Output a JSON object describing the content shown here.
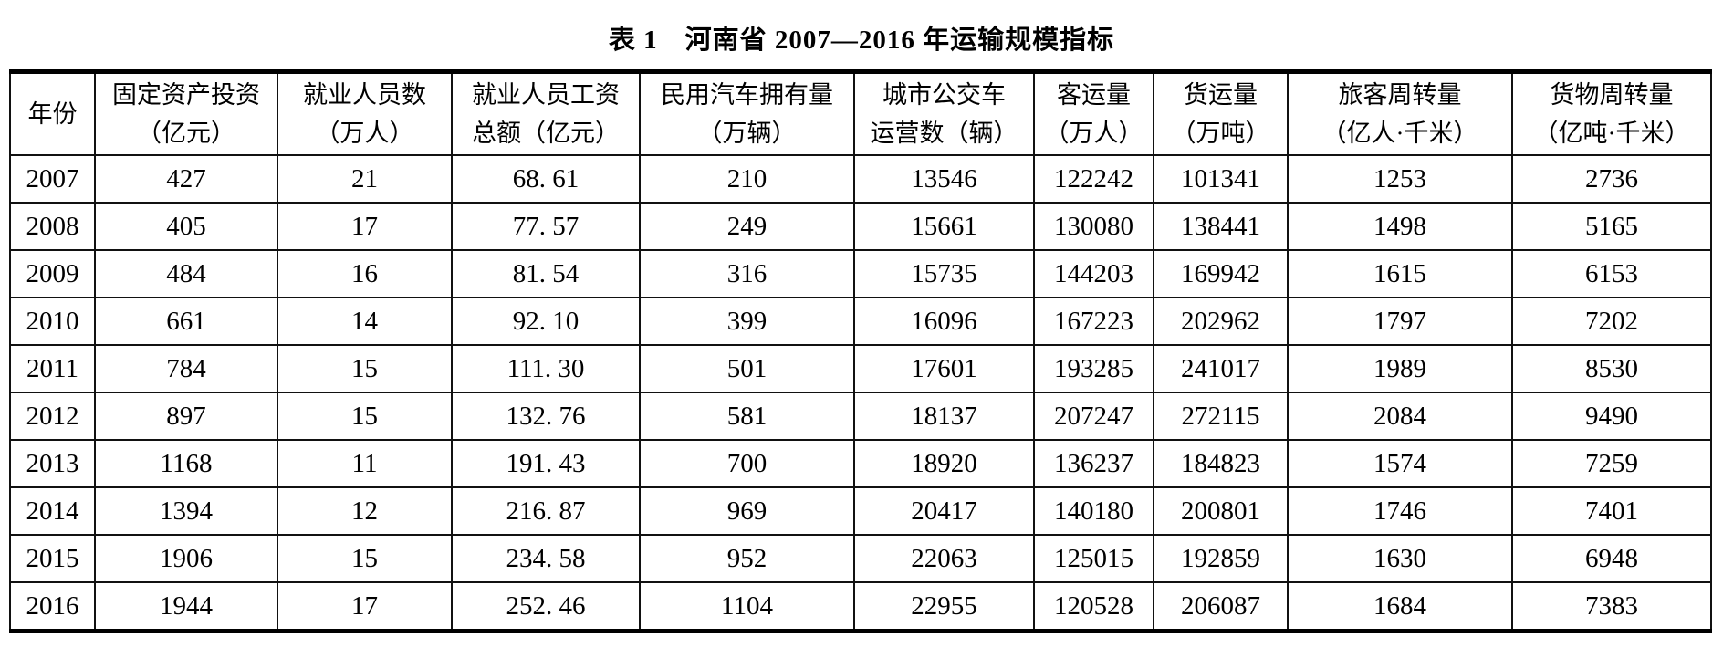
{
  "title": "表 1　河南省 2007—2016 年运输规模指标",
  "table": {
    "columns": [
      {
        "line1": "年份",
        "line2": ""
      },
      {
        "line1": "固定资产投资",
        "line2": "（亿元）"
      },
      {
        "line1": "就业人员数",
        "line2": "（万人）"
      },
      {
        "line1": "就业人员工资",
        "line2": "总额（亿元）"
      },
      {
        "line1": "民用汽车拥有量",
        "line2": "（万辆）"
      },
      {
        "line1": "城市公交车",
        "line2": "运营数（辆）"
      },
      {
        "line1": "客运量",
        "line2": "（万人）"
      },
      {
        "line1": "货运量",
        "line2": "（万吨）"
      },
      {
        "line1": "旅客周转量",
        "line2": "（亿人·千米）"
      },
      {
        "line1": "货物周转量",
        "line2": "（亿吨·千米）"
      }
    ],
    "rows": [
      [
        "2007",
        "427",
        "21",
        "68. 61",
        "210",
        "13546",
        "122242",
        "101341",
        "1253",
        "2736"
      ],
      [
        "2008",
        "405",
        "17",
        "77. 57",
        "249",
        "15661",
        "130080",
        "138441",
        "1498",
        "5165"
      ],
      [
        "2009",
        "484",
        "16",
        "81. 54",
        "316",
        "15735",
        "144203",
        "169942",
        "1615",
        "6153"
      ],
      [
        "2010",
        "661",
        "14",
        "92. 10",
        "399",
        "16096",
        "167223",
        "202962",
        "1797",
        "7202"
      ],
      [
        "2011",
        "784",
        "15",
        "111. 30",
        "501",
        "17601",
        "193285",
        "241017",
        "1989",
        "8530"
      ],
      [
        "2012",
        "897",
        "15",
        "132. 76",
        "581",
        "18137",
        "207247",
        "272115",
        "2084",
        "9490"
      ],
      [
        "2013",
        "1168",
        "11",
        "191. 43",
        "700",
        "18920",
        "136237",
        "184823",
        "1574",
        "7259"
      ],
      [
        "2014",
        "1394",
        "12",
        "216. 87",
        "969",
        "20417",
        "140180",
        "200801",
        "1746",
        "7401"
      ],
      [
        "2015",
        "1906",
        "15",
        "234. 58",
        "952",
        "22063",
        "125015",
        "192859",
        "1630",
        "6948"
      ],
      [
        "2016",
        "1944",
        "17",
        "252. 46",
        "1104",
        "22955",
        "120528",
        "206087",
        "1684",
        "7383"
      ]
    ]
  },
  "colors": {
    "text": "#000000",
    "border": "#111111",
    "background": "#ffffff"
  }
}
